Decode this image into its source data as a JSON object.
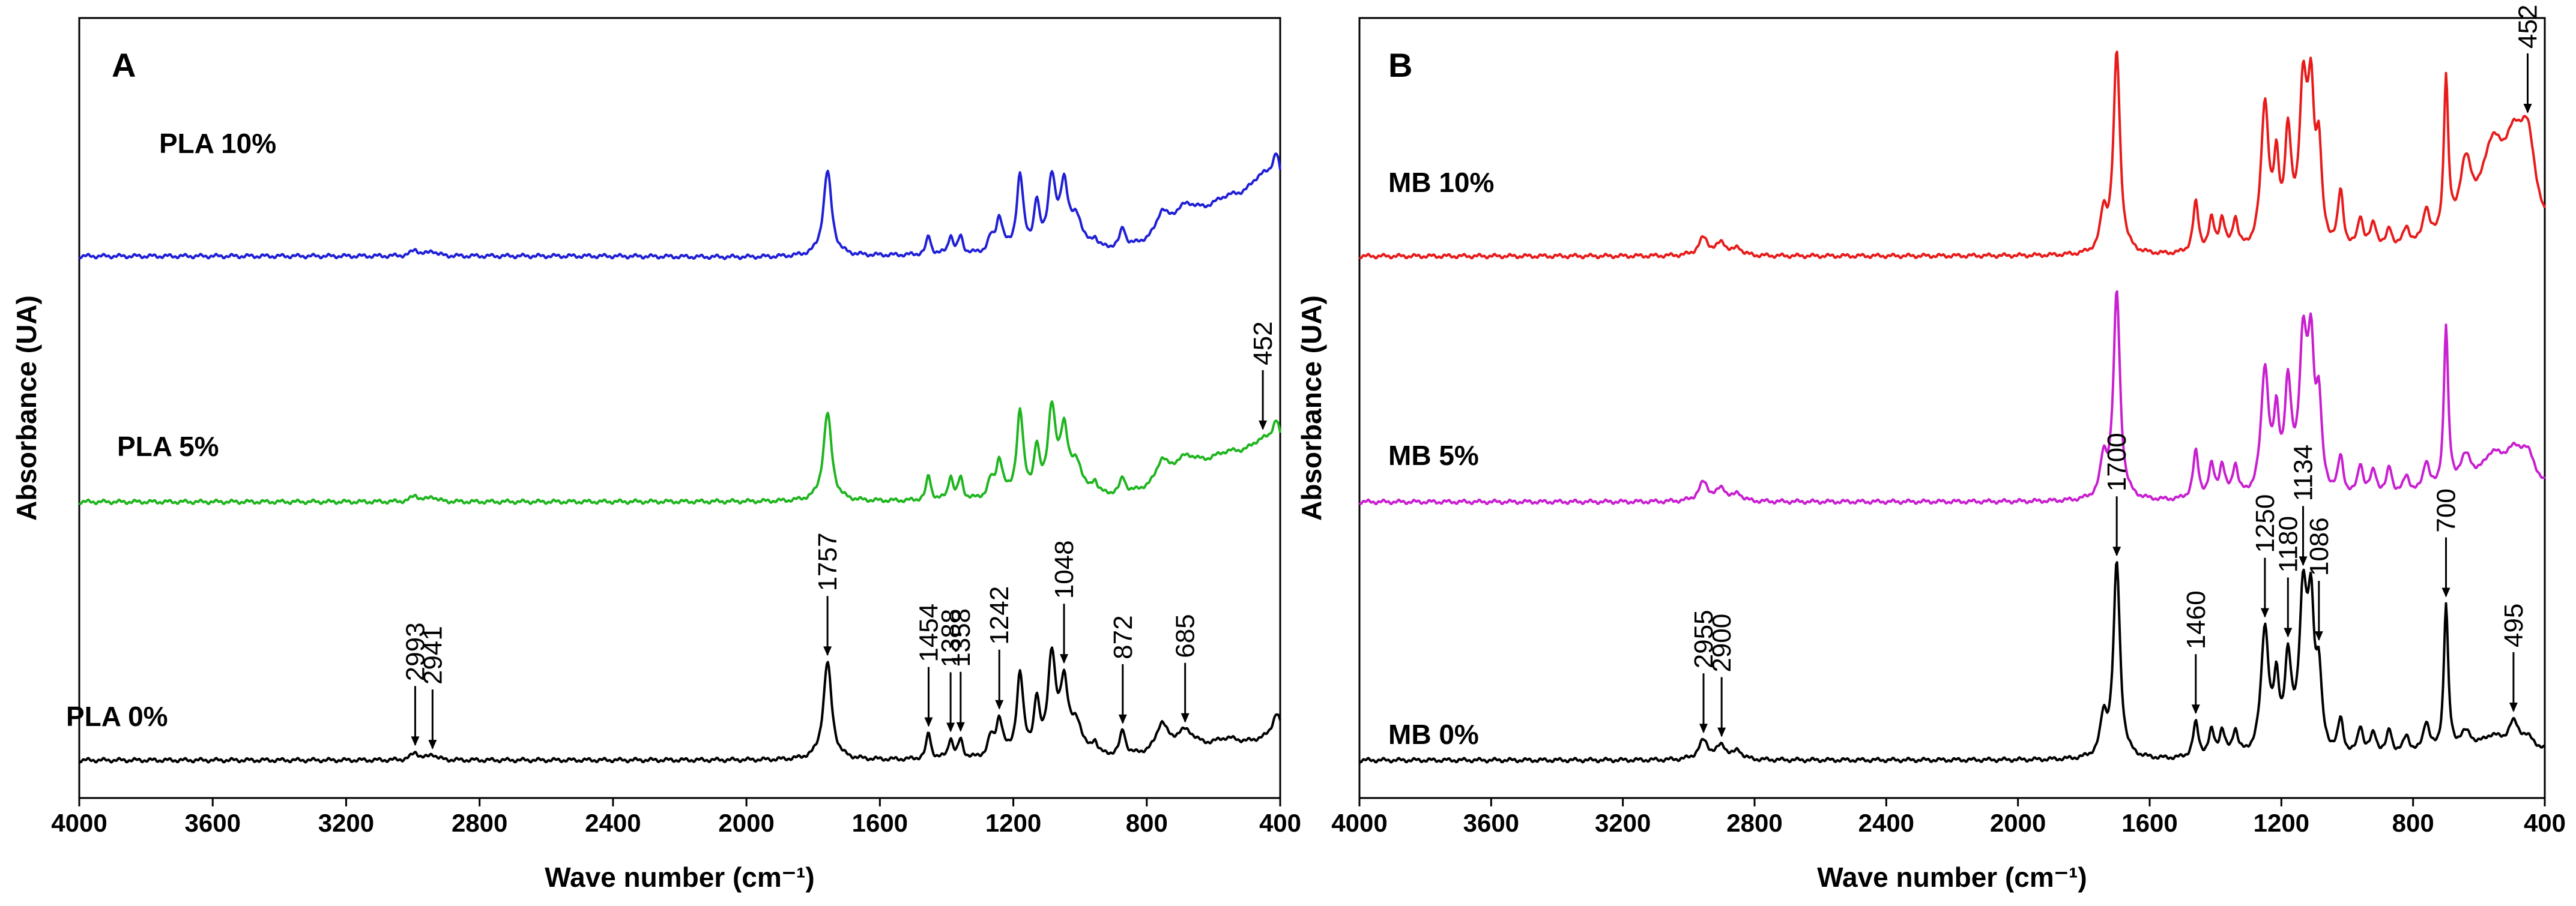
{
  "chart_data": [
    {
      "panel": "A",
      "type": "line",
      "title": "",
      "xlabel": "Wave number (cm⁻¹)",
      "ylabel": "Absorbance (UA)",
      "xlim": [
        4000,
        400
      ],
      "x_ticks": [
        4000,
        3600,
        3200,
        2800,
        2400,
        2000,
        1600,
        1200,
        800,
        400
      ],
      "x_tick_labels": [
        "4000",
        "3600",
        "3200",
        "2800",
        "2400",
        "2000",
        "1600",
        "1200",
        "800",
        "400"
      ],
      "grid": false,
      "series": [
        {
          "name": "PLA 10%",
          "color": "#1f1fd6",
          "baseline": 8.6,
          "scale": 1.35,
          "fullscale": false,
          "sample": "PLA",
          "gain": 0.3,
          "broad_dip": 0.45,
          "peaks": [
            [
              2993,
              0.1,
              14
            ],
            [
              2941,
              0.08,
              14
            ],
            [
              1757,
              1.35,
              15
            ],
            [
              1454,
              0.3,
              8
            ],
            [
              1388,
              0.3,
              8
            ],
            [
              1358,
              0.28,
              8
            ],
            [
              1268,
              0.2,
              10
            ],
            [
              1242,
              0.55,
              12
            ],
            [
              1180,
              1.2,
              12
            ],
            [
              1130,
              0.7,
              10
            ],
            [
              1085,
              1.1,
              14
            ],
            [
              1048,
              1.0,
              14
            ],
            [
              1010,
              0.5,
              20
            ],
            [
              956,
              0.15,
              10
            ],
            [
              872,
              0.3,
              10
            ],
            [
              755,
              0.35,
              20
            ],
            [
              685,
              0.5,
              60
            ],
            [
              560,
              0.6,
              90
            ],
            [
              452,
              0.85,
              60
            ],
            [
              410,
              0.8,
              18
            ]
          ]
        },
        {
          "name": "PLA 5%",
          "color": "#1fb51f",
          "baseline": 4.7,
          "scale": 1.35,
          "fullscale": false,
          "sample": "PLA",
          "gain": 0.35,
          "peaks": [
            [
              2993,
              0.1,
              14
            ],
            [
              2941,
              0.08,
              14
            ],
            [
              1757,
              1.4,
              15
            ],
            [
              1454,
              0.4,
              8
            ],
            [
              1388,
              0.38,
              8
            ],
            [
              1358,
              0.35,
              8
            ],
            [
              1268,
              0.25,
              10
            ],
            [
              1242,
              0.6,
              12
            ],
            [
              1180,
              1.35,
              12
            ],
            [
              1130,
              0.7,
              10
            ],
            [
              1085,
              1.35,
              14
            ],
            [
              1048,
              1.0,
              14
            ],
            [
              1010,
              0.5,
              20
            ],
            [
              956,
              0.2,
              10
            ],
            [
              872,
              0.25,
              10
            ],
            [
              755,
              0.35,
              20
            ],
            [
              685,
              0.45,
              60
            ],
            [
              560,
              0.5,
              90
            ],
            [
              452,
              0.6,
              60
            ],
            [
              410,
              0.65,
              18
            ]
          ]
        },
        {
          "name": "PLA 0%",
          "color": "#000000",
          "baseline": 0.6,
          "scale": 1.35,
          "fullscale": false,
          "sample": "PLA",
          "gain": 0.4,
          "peaks": [
            [
              2993,
              0.12,
              14
            ],
            [
              2941,
              0.09,
              14
            ],
            [
              1757,
              1.55,
              15
            ],
            [
              1454,
              0.42,
              8
            ],
            [
              1388,
              0.32,
              8
            ],
            [
              1358,
              0.3,
              8
            ],
            [
              1268,
              0.28,
              10
            ],
            [
              1242,
              0.6,
              12
            ],
            [
              1180,
              1.3,
              12
            ],
            [
              1130,
              0.8,
              10
            ],
            [
              1085,
              1.55,
              14
            ],
            [
              1048,
              1.1,
              14
            ],
            [
              1010,
              0.5,
              20
            ],
            [
              956,
              0.2,
              10
            ],
            [
              872,
              0.4,
              10
            ],
            [
              755,
              0.45,
              20
            ],
            [
              685,
              0.35,
              40
            ],
            [
              560,
              0.2,
              60
            ],
            [
              452,
              0.15,
              60
            ],
            [
              410,
              0.5,
              18
            ]
          ]
        }
      ],
      "peak_labels": [
        {
          "text": "2993",
          "x": 2993,
          "series": 2
        },
        {
          "text": "2941",
          "x": 2941,
          "series": 2
        },
        {
          "text": "1757",
          "x": 1757,
          "series": 2
        },
        {
          "text": "1454",
          "x": 1454,
          "series": 2
        },
        {
          "text": "1388",
          "x": 1388,
          "series": 2
        },
        {
          "text": "1358",
          "x": 1358,
          "series": 2
        },
        {
          "text": "1242",
          "x": 1242,
          "series": 2
        },
        {
          "text": "1048",
          "x": 1048,
          "series": 2
        },
        {
          "text": "872",
          "x": 872,
          "series": 2
        },
        {
          "text": "685",
          "x": 685,
          "series": 2
        },
        {
          "text": "452",
          "x": 452,
          "series": 1
        }
      ]
    },
    {
      "panel": "B",
      "type": "line",
      "title": "",
      "xlabel": "Wave number (cm⁻¹)",
      "ylabel": "Absorbance (UA)",
      "xlim": [
        4000,
        400
      ],
      "x_ticks": [
        4000,
        3600,
        3200,
        2800,
        2400,
        2000,
        1600,
        1200,
        800,
        400
      ],
      "x_tick_labels": [
        "4000",
        "3600",
        "3200",
        "2800",
        "2400",
        "2000",
        "1600",
        "1200",
        "800",
        "400"
      ],
      "grid": false,
      "series": [
        {
          "name": "MB 10%",
          "color": "#e81b1b",
          "baseline": 8.6,
          "scale": 3.2,
          "fullscale": true,
          "sample": "MB",
          "gain": 0.55,
          "peaks": [
            [
              2955,
              0.28,
              18
            ],
            [
              2900,
              0.2,
              18
            ],
            [
              2850,
              0.12,
              14
            ],
            [
              1740,
              0.6,
              12
            ],
            [
              1700,
              3.2,
              12
            ],
            [
              1460,
              0.8,
              10
            ],
            [
              1412,
              0.5,
              10
            ],
            [
              1380,
              0.5,
              10
            ],
            [
              1340,
              0.5,
              10
            ],
            [
              1250,
              2.3,
              14
            ],
            [
              1215,
              1.2,
              10
            ],
            [
              1180,
              1.7,
              12
            ],
            [
              1134,
              2.4,
              14
            ],
            [
              1110,
              2.2,
              12
            ],
            [
              1086,
              1.4,
              10
            ],
            [
              1020,
              0.9,
              10
            ],
            [
              960,
              0.5,
              10
            ],
            [
              920,
              0.4,
              12
            ],
            [
              872,
              0.3,
              10
            ],
            [
              820,
              0.3,
              12
            ],
            [
              760,
              0.55,
              12
            ],
            [
              700,
              2.5,
              8
            ],
            [
              640,
              1.1,
              24
            ],
            [
              560,
              1.3,
              40
            ],
            [
              495,
              1.2,
              40
            ],
            [
              452,
              1.3,
              30
            ]
          ]
        },
        {
          "name": "MB 5%",
          "color": "#c81fd0",
          "baseline": 4.7,
          "scale": 3.2,
          "fullscale": true,
          "sample": "MB",
          "gain": 0.45,
          "peaks": [
            [
              2955,
              0.3,
              18
            ],
            [
              2900,
              0.2,
              18
            ],
            [
              2850,
              0.12,
              14
            ],
            [
              1740,
              0.6,
              12
            ],
            [
              1700,
              3.3,
              12
            ],
            [
              1460,
              0.75,
              10
            ],
            [
              1412,
              0.5,
              10
            ],
            [
              1380,
              0.5,
              10
            ],
            [
              1340,
              0.5,
              10
            ],
            [
              1250,
              2.0,
              14
            ],
            [
              1215,
              1.1,
              10
            ],
            [
              1180,
              1.65,
              12
            ],
            [
              1134,
              2.3,
              14
            ],
            [
              1110,
              2.1,
              12
            ],
            [
              1086,
              1.3,
              10
            ],
            [
              1020,
              0.6,
              10
            ],
            [
              960,
              0.5,
              10
            ],
            [
              920,
              0.4,
              12
            ],
            [
              872,
              0.45,
              10
            ],
            [
              820,
              0.3,
              12
            ],
            [
              760,
              0.5,
              12
            ],
            [
              700,
              2.6,
              8
            ],
            [
              640,
              0.5,
              24
            ],
            [
              560,
              0.5,
              40
            ],
            [
              495,
              0.5,
              40
            ],
            [
              452,
              0.45,
              30
            ]
          ]
        },
        {
          "name": "MB 0%",
          "color": "#000000",
          "baseline": 0.6,
          "scale": 3.2,
          "fullscale": true,
          "sample": "MB",
          "gain": 0.4,
          "peaks": [
            [
              2955,
              0.3,
              18
            ],
            [
              2900,
              0.22,
              18
            ],
            [
              2850,
              0.14,
              14
            ],
            [
              1740,
              0.6,
              12
            ],
            [
              1700,
              3.1,
              12
            ],
            [
              1460,
              0.55,
              10
            ],
            [
              1412,
              0.4,
              10
            ],
            [
              1380,
              0.4,
              10
            ],
            [
              1340,
              0.4,
              10
            ],
            [
              1250,
              2.0,
              14
            ],
            [
              1215,
              1.0,
              10
            ],
            [
              1180,
              1.4,
              12
            ],
            [
              1134,
              2.4,
              14
            ],
            [
              1110,
              2.1,
              12
            ],
            [
              1086,
              1.1,
              10
            ],
            [
              1020,
              0.55,
              10
            ],
            [
              960,
              0.45,
              10
            ],
            [
              920,
              0.35,
              12
            ],
            [
              872,
              0.4,
              10
            ],
            [
              820,
              0.3,
              12
            ],
            [
              760,
              0.5,
              12
            ],
            [
              700,
              2.35,
              8
            ],
            [
              640,
              0.3,
              24
            ],
            [
              560,
              0.25,
              40
            ],
            [
              495,
              0.4,
              20
            ],
            [
              452,
              0.2,
              30
            ]
          ]
        }
      ],
      "peak_labels": [
        {
          "text": "2955",
          "x": 2955,
          "series": 2
        },
        {
          "text": "2900",
          "x": 2900,
          "series": 2
        },
        {
          "text": "1700",
          "x": 1700,
          "series": 2
        },
        {
          "text": "1460",
          "x": 1460,
          "series": 2
        },
        {
          "text": "1250",
          "x": 1250,
          "series": 2
        },
        {
          "text": "1180",
          "x": 1180,
          "series": 2
        },
        {
          "text": "1134",
          "x": 1134,
          "series": 2
        },
        {
          "text": "1086",
          "x": 1086,
          "series": 2
        },
        {
          "text": "700",
          "x": 700,
          "series": 2
        },
        {
          "text": "495",
          "x": 495,
          "series": 2
        },
        {
          "text": "452",
          "x": 452,
          "series": 0
        }
      ]
    }
  ]
}
